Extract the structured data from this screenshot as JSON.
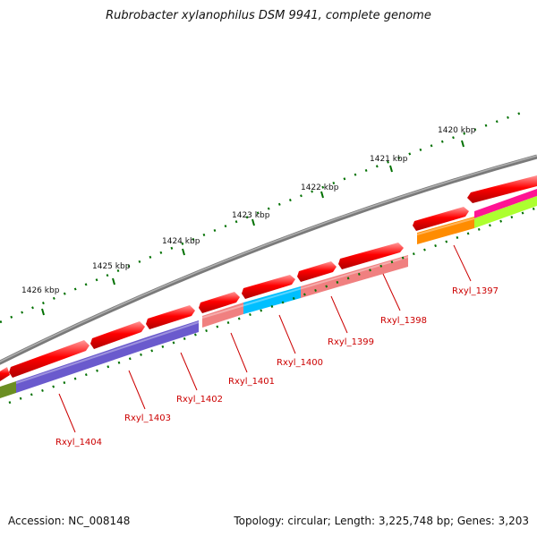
{
  "header": {
    "title": "Rubrobacter xylanophilus DSM 9941, complete genome"
  },
  "footer": {
    "accession": "Accession: NC_008148",
    "summary": "Topology: circular; Length: 3,225,748 bp; Genes: 3,203"
  },
  "ruler": {
    "ticks": [
      "1420 kbp",
      "1421 kbp",
      "1422 kbp",
      "1423 kbp",
      "1424 kbp",
      "1425 kbp",
      "1426 kbp"
    ]
  },
  "genes": [
    {
      "label": "Rxyl_1397",
      "color": "#ff8c00"
    },
    {
      "label": "Rxyl_1398",
      "color": "#f08080"
    },
    {
      "label": "Rxyl_1399",
      "color": "#f08080"
    },
    {
      "label": "Rxyl_1400",
      "color": "#00bfff"
    },
    {
      "label": "Rxyl_1401",
      "color": "#f08080"
    },
    {
      "label": "Rxyl_1402",
      "color": "#6a5acd"
    },
    {
      "label": "Rxyl_1403",
      "color": "#6a5acd"
    },
    {
      "label": "Rxyl_1404",
      "color": "#6a5acd"
    }
  ],
  "colors": {
    "backbone": "#808080",
    "cds": "#ff0000",
    "ruler_tick": "#007000",
    "label": "#cc0000",
    "pink_track": "#ff1493",
    "green_track": "#adff2f",
    "olive_track": "#6b8e23"
  }
}
